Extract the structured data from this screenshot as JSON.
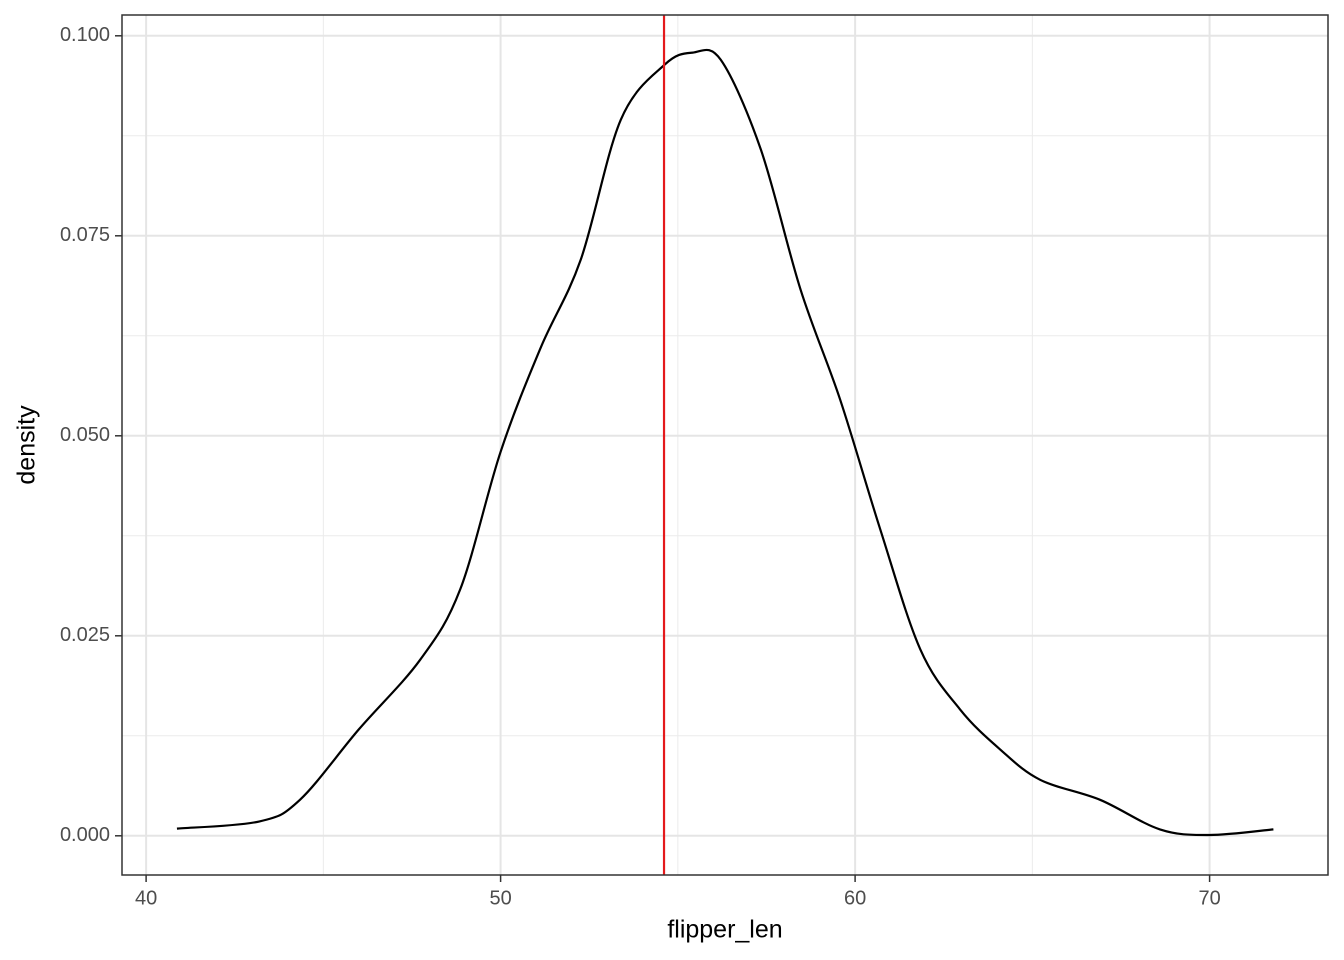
{
  "chart_data": {
    "type": "density",
    "x_label": "flipper_len",
    "y_label": "density",
    "x": [
      40.87,
      43.2,
      44.34,
      46.0,
      47.73,
      48.86,
      50.0,
      51.13,
      52.26,
      53.39,
      54.63,
      55.42,
      56.21,
      57.34,
      58.46,
      59.58,
      60.71,
      61.84,
      62.96,
      64.09,
      65.22,
      66.91,
      68.6,
      70.0,
      71.8
    ],
    "values": [
      0.0009,
      0.0018,
      0.0045,
      0.0133,
      0.022,
      0.0308,
      0.048,
      0.061,
      0.072,
      0.0895,
      0.0964,
      0.0979,
      0.097,
      0.0858,
      0.0683,
      0.0545,
      0.0383,
      0.0233,
      0.0158,
      0.0108,
      0.007,
      0.0045,
      0.0008,
      0.0001,
      0.0008
    ],
    "color": "#000000",
    "vline": {
      "x": 54.61,
      "color": "#e41a1c"
    },
    "xlim": [
      39.32,
      73.34
    ],
    "ylim": [
      -0.0049,
      0.1026
    ],
    "xticks": [
      40,
      50,
      60,
      70
    ],
    "yticks": [
      {
        "value": 0,
        "label": "0.000"
      },
      {
        "value": 0.025,
        "label": "0.025"
      },
      {
        "value": 0.05,
        "label": "0.050"
      },
      {
        "value": 0.075,
        "label": "0.075"
      },
      {
        "value": 0.1,
        "label": "0.100"
      }
    ],
    "grid": true
  }
}
